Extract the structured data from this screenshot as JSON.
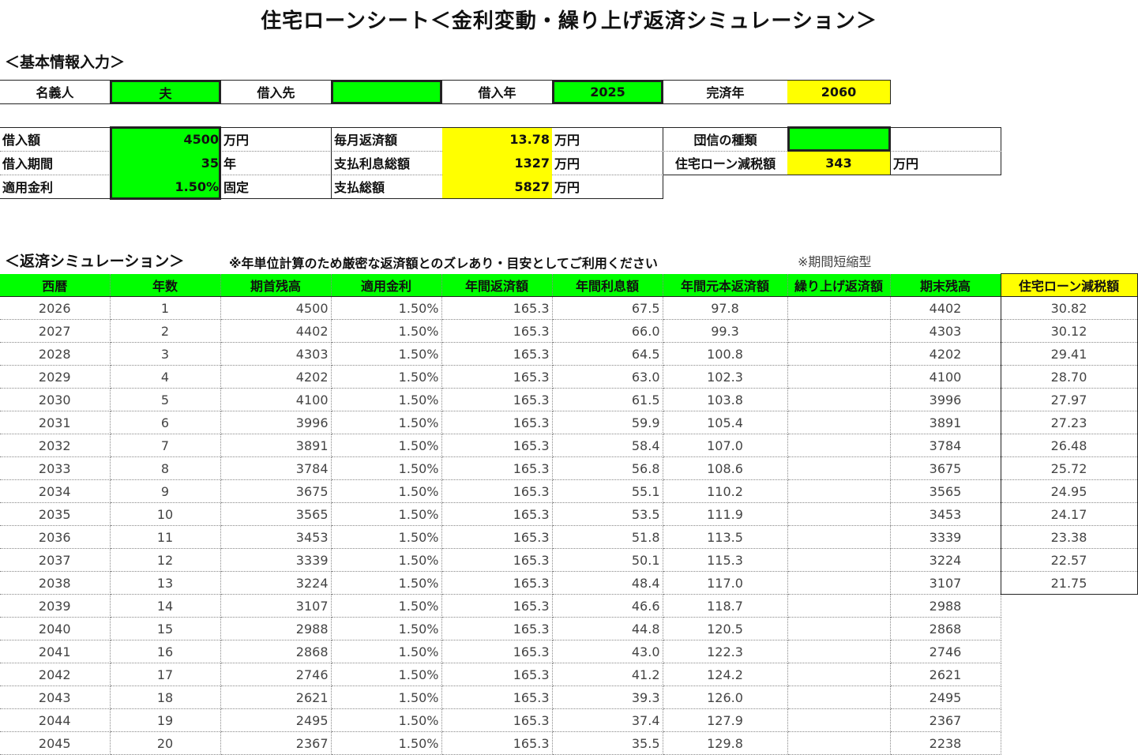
{
  "title": "住宅ローンシート＜金利変動・繰り上げ返済シミュレーション＞",
  "basic": {
    "heading": "＜基本情報入力＞",
    "holder_label": "名義人",
    "holder": "夫",
    "lender_label": "借入先",
    "lender": "",
    "year_label": "借入年",
    "year": "2025",
    "end_label": "完済年",
    "end": "2060"
  },
  "loan": {
    "amount_label": "借入額",
    "amount": "4500",
    "amount_unit": "万円",
    "term_label": "借入期間",
    "term": "35",
    "term_unit": "年",
    "rate_label": "適用金利",
    "rate": "1.50%",
    "rate_type": "固定",
    "monthly_label": "毎月返済額",
    "monthly": "13.78",
    "monthly_unit": "万円",
    "interest_label": "支払利息総額",
    "interest": "1327",
    "interest_unit": "万円",
    "total_label": "支払総額",
    "total": "5827",
    "total_unit": "万円",
    "insurance_label": "団信の種類",
    "insurance": "",
    "tax_label": "住宅ローン減税額",
    "tax": "343",
    "tax_unit": "万円"
  },
  "sim": {
    "heading": "＜返済シミュレーション＞",
    "note": "※年単位計算のため厳密な返済額とのズレあり・目安としてご利用ください",
    "type": "※期間短縮型",
    "headers": [
      "西暦",
      "年数",
      "期首残高",
      "適用金利",
      "年間返済額",
      "年間利息額",
      "年間元本返済額",
      "繰り上げ返済額",
      "期末残高",
      "住宅ローン減税額"
    ],
    "rows": [
      [
        "2026",
        "1",
        "4500",
        "1.50%",
        "165.3",
        "67.5",
        "97.8",
        "",
        "4402",
        "30.82"
      ],
      [
        "2027",
        "2",
        "4402",
        "1.50%",
        "165.3",
        "66.0",
        "99.3",
        "",
        "4303",
        "30.12"
      ],
      [
        "2028",
        "3",
        "4303",
        "1.50%",
        "165.3",
        "64.5",
        "100.8",
        "",
        "4202",
        "29.41"
      ],
      [
        "2029",
        "4",
        "4202",
        "1.50%",
        "165.3",
        "63.0",
        "102.3",
        "",
        "4100",
        "28.70"
      ],
      [
        "2030",
        "5",
        "4100",
        "1.50%",
        "165.3",
        "61.5",
        "103.8",
        "",
        "3996",
        "27.97"
      ],
      [
        "2031",
        "6",
        "3996",
        "1.50%",
        "165.3",
        "59.9",
        "105.4",
        "",
        "3891",
        "27.23"
      ],
      [
        "2032",
        "7",
        "3891",
        "1.50%",
        "165.3",
        "58.4",
        "107.0",
        "",
        "3784",
        "26.48"
      ],
      [
        "2033",
        "8",
        "3784",
        "1.50%",
        "165.3",
        "56.8",
        "108.6",
        "",
        "3675",
        "25.72"
      ],
      [
        "2034",
        "9",
        "3675",
        "1.50%",
        "165.3",
        "55.1",
        "110.2",
        "",
        "3565",
        "24.95"
      ],
      [
        "2035",
        "10",
        "3565",
        "1.50%",
        "165.3",
        "53.5",
        "111.9",
        "",
        "3453",
        "24.17"
      ],
      [
        "2036",
        "11",
        "3453",
        "1.50%",
        "165.3",
        "51.8",
        "113.5",
        "",
        "3339",
        "23.38"
      ],
      [
        "2037",
        "12",
        "3339",
        "1.50%",
        "165.3",
        "50.1",
        "115.3",
        "",
        "3224",
        "22.57"
      ],
      [
        "2038",
        "13",
        "3224",
        "1.50%",
        "165.3",
        "48.4",
        "117.0",
        "",
        "3107",
        "21.75"
      ],
      [
        "2039",
        "14",
        "3107",
        "1.50%",
        "165.3",
        "46.6",
        "118.7",
        "",
        "2988",
        null
      ],
      [
        "2040",
        "15",
        "2988",
        "1.50%",
        "165.3",
        "44.8",
        "120.5",
        "",
        "2868",
        null
      ],
      [
        "2041",
        "16",
        "2868",
        "1.50%",
        "165.3",
        "43.0",
        "122.3",
        "",
        "2746",
        null
      ],
      [
        "2042",
        "17",
        "2746",
        "1.50%",
        "165.3",
        "41.2",
        "124.2",
        "",
        "2621",
        null
      ],
      [
        "2043",
        "18",
        "2621",
        "1.50%",
        "165.3",
        "39.3",
        "126.0",
        "",
        "2495",
        null
      ],
      [
        "2044",
        "19",
        "2495",
        "1.50%",
        "165.3",
        "37.4",
        "127.9",
        "",
        "2367",
        null
      ],
      [
        "2045",
        "20",
        "2367",
        "1.50%",
        "165.3",
        "35.5",
        "129.8",
        "",
        "2238",
        null
      ]
    ]
  }
}
